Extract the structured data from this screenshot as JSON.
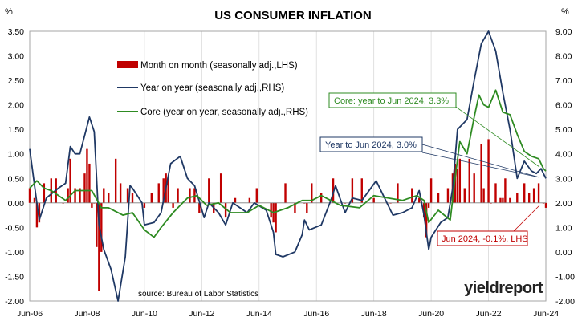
{
  "chart_data": {
    "type": "bar+line",
    "title": "US CONSUMER INFLATION",
    "left_axis": {
      "unit": "%",
      "ylim": [
        -2.0,
        3.5
      ],
      "ticks": [
        "3.50",
        "3.00",
        "2.50",
        "2.00",
        "1.50",
        "1.00",
        "0.50",
        "0.00",
        "-0.50",
        "-1.00",
        "-1.50",
        "-2.00"
      ]
    },
    "right_axis": {
      "unit": "%",
      "ylim": [
        -2.0,
        9.0
      ],
      "ticks": [
        "9.00",
        "8.00",
        "7.00",
        "6.00",
        "5.00",
        "4.00",
        "3.00",
        "2.00",
        "1.00",
        "0.00",
        "-1.00",
        "-2.00"
      ]
    },
    "x_axis": {
      "range": [
        "2006-06",
        "2024-06"
      ],
      "ticks": [
        "Jun-06",
        "Jun-08",
        "Jun-10",
        "Jun-12",
        "Jun-14",
        "Jun-16",
        "Jun-18",
        "Jun-20",
        "Jun-22",
        "Jun-24"
      ]
    },
    "grid": "vertical",
    "legend_position": "upper-left",
    "legend": [
      {
        "label": "Month on month (seasonally adj.,LHS)",
        "style": "bar",
        "color": "#c00000"
      },
      {
        "label": "Year on year (seasonally adj.,RHS)",
        "style": "line",
        "color": "#1f3864"
      },
      {
        "label": "Core (year on year, seasonally adj.,RHS)",
        "style": "line",
        "color": "#2e8b22"
      }
    ],
    "series": [
      {
        "name": "Month on month (seasonally adj.,LHS)",
        "type": "bar",
        "axis": "left",
        "color": "#c00000",
        "points": [
          [
            "2006-06",
            0.3
          ],
          [
            "2006-08",
            0.1
          ],
          [
            "2006-09",
            -0.5
          ],
          [
            "2006-10",
            -0.4
          ],
          [
            "2006-12",
            0.4
          ],
          [
            "2007-03",
            0.5
          ],
          [
            "2007-05",
            0.5
          ],
          [
            "2007-08",
            0.0
          ],
          [
            "2007-10",
            0.3
          ],
          [
            "2007-11",
            0.9
          ],
          [
            "2008-01",
            0.3
          ],
          [
            "2008-03",
            0.3
          ],
          [
            "2008-05",
            0.6
          ],
          [
            "2008-06",
            1.1
          ],
          [
            "2008-07",
            0.8
          ],
          [
            "2008-08",
            -0.1
          ],
          [
            "2008-09",
            0.0
          ],
          [
            "2008-10",
            -0.9
          ],
          [
            "2008-11",
            -1.8
          ],
          [
            "2008-12",
            -1.0
          ],
          [
            "2009-01",
            0.3
          ],
          [
            "2009-03",
            0.2
          ],
          [
            "2009-06",
            0.9
          ],
          [
            "2009-08",
            0.4
          ],
          [
            "2009-11",
            0.3
          ],
          [
            "2010-01",
            0.2
          ],
          [
            "2010-06",
            -0.1
          ],
          [
            "2010-09",
            0.2
          ],
          [
            "2010-12",
            0.4
          ],
          [
            "2011-02",
            0.5
          ],
          [
            "2011-03",
            0.6
          ],
          [
            "2011-04",
            0.5
          ],
          [
            "2011-06",
            -0.1
          ],
          [
            "2011-08",
            0.3
          ],
          [
            "2012-01",
            0.3
          ],
          [
            "2012-03",
            0.3
          ],
          [
            "2012-05",
            -0.2
          ],
          [
            "2012-09",
            0.5
          ],
          [
            "2012-11",
            -0.2
          ],
          [
            "2013-02",
            0.6
          ],
          [
            "2013-04",
            -0.3
          ],
          [
            "2013-08",
            0.1
          ],
          [
            "2014-02",
            0.1
          ],
          [
            "2014-05",
            0.3
          ],
          [
            "2014-11",
            -0.3
          ],
          [
            "2014-12",
            -0.4
          ],
          [
            "2015-01",
            -0.6
          ],
          [
            "2015-05",
            0.4
          ],
          [
            "2015-09",
            -0.2
          ],
          [
            "2016-01",
            0.0
          ],
          [
            "2016-02",
            -0.2
          ],
          [
            "2016-04",
            0.4
          ],
          [
            "2016-08",
            0.2
          ],
          [
            "2017-01",
            0.5
          ],
          [
            "2017-06",
            0.0
          ],
          [
            "2017-09",
            0.5
          ],
          [
            "2018-01",
            0.5
          ],
          [
            "2018-06",
            0.1
          ],
          [
            "2019-01",
            0.0
          ],
          [
            "2019-04",
            0.4
          ],
          [
            "2019-10",
            0.3
          ],
          [
            "2020-01",
            0.1
          ],
          [
            "2020-03",
            -0.3
          ],
          [
            "2020-04",
            -0.7
          ],
          [
            "2020-05",
            -0.1
          ],
          [
            "2020-06",
            0.5
          ],
          [
            "2020-09",
            0.2
          ],
          [
            "2021-01",
            0.3
          ],
          [
            "2021-03",
            0.6
          ],
          [
            "2021-04",
            0.8
          ],
          [
            "2021-05",
            0.7
          ],
          [
            "2021-06",
            0.9
          ],
          [
            "2021-08",
            0.3
          ],
          [
            "2021-10",
            0.9
          ],
          [
            "2021-12",
            0.6
          ],
          [
            "2022-03",
            1.2
          ],
          [
            "2022-04",
            0.3
          ],
          [
            "2022-06",
            1.3
          ],
          [
            "2022-07",
            0.0
          ],
          [
            "2022-09",
            0.4
          ],
          [
            "2022-11",
            0.1
          ],
          [
            "2022-12",
            0.1
          ],
          [
            "2023-01",
            0.5
          ],
          [
            "2023-03",
            0.1
          ],
          [
            "2023-06",
            0.2
          ],
          [
            "2023-09",
            0.4
          ],
          [
            "2023-11",
            0.2
          ],
          [
            "2024-01",
            0.3
          ],
          [
            "2024-03",
            0.4
          ],
          [
            "2024-05",
            0.0
          ],
          [
            "2024-06",
            -0.1
          ]
        ]
      },
      {
        "name": "Year on year (seasonally adj.,RHS)",
        "type": "line",
        "axis": "right",
        "color": "#1f3864",
        "points": [
          [
            "2006-06",
            4.2
          ],
          [
            "2006-09",
            2.0
          ],
          [
            "2006-10",
            1.3
          ],
          [
            "2007-01",
            2.2
          ],
          [
            "2007-06",
            2.6
          ],
          [
            "2007-09",
            2.8
          ],
          [
            "2007-11",
            4.3
          ],
          [
            "2008-01",
            4.0
          ],
          [
            "2008-03",
            4.0
          ],
          [
            "2008-07",
            5.5
          ],
          [
            "2008-09",
            4.9
          ],
          [
            "2008-11",
            1.1
          ],
          [
            "2009-01",
            0.1
          ],
          [
            "2009-04",
            -0.7
          ],
          [
            "2009-07",
            -2.0
          ],
          [
            "2009-10",
            -0.2
          ],
          [
            "2009-12",
            2.7
          ],
          [
            "2010-01",
            2.6
          ],
          [
            "2010-05",
            2.0
          ],
          [
            "2010-06",
            1.1
          ],
          [
            "2010-10",
            1.2
          ],
          [
            "2011-01",
            1.6
          ],
          [
            "2011-05",
            3.6
          ],
          [
            "2011-09",
            3.9
          ],
          [
            "2011-12",
            3.0
          ],
          [
            "2012-03",
            2.7
          ],
          [
            "2012-07",
            1.4
          ],
          [
            "2012-09",
            2.0
          ],
          [
            "2013-01",
            1.6
          ],
          [
            "2013-04",
            1.1
          ],
          [
            "2013-07",
            2.0
          ],
          [
            "2014-01",
            1.6
          ],
          [
            "2014-04",
            2.0
          ],
          [
            "2014-09",
            1.7
          ],
          [
            "2014-12",
            0.8
          ],
          [
            "2015-01",
            -0.1
          ],
          [
            "2015-04",
            -0.2
          ],
          [
            "2015-09",
            0.0
          ],
          [
            "2015-12",
            0.7
          ],
          [
            "2016-01",
            1.3
          ],
          [
            "2016-03",
            0.9
          ],
          [
            "2016-08",
            1.1
          ],
          [
            "2016-12",
            2.1
          ],
          [
            "2017-02",
            2.7
          ],
          [
            "2017-06",
            1.6
          ],
          [
            "2017-09",
            2.2
          ],
          [
            "2018-01",
            2.1
          ],
          [
            "2018-07",
            2.9
          ],
          [
            "2018-12",
            1.9
          ],
          [
            "2019-02",
            1.5
          ],
          [
            "2019-06",
            1.6
          ],
          [
            "2019-10",
            1.8
          ],
          [
            "2020-01",
            2.5
          ],
          [
            "2020-03",
            1.5
          ],
          [
            "2020-05",
            0.1
          ],
          [
            "2020-06",
            0.6
          ],
          [
            "2020-10",
            1.2
          ],
          [
            "2021-01",
            1.4
          ],
          [
            "2021-03",
            2.6
          ],
          [
            "2021-05",
            5.0
          ],
          [
            "2021-09",
            5.4
          ],
          [
            "2021-12",
            7.0
          ],
          [
            "2022-03",
            8.5
          ],
          [
            "2022-06",
            9.0
          ],
          [
            "2022-09",
            8.2
          ],
          [
            "2022-12",
            6.5
          ],
          [
            "2023-03",
            5.0
          ],
          [
            "2023-06",
            3.0
          ],
          [
            "2023-09",
            3.7
          ],
          [
            "2023-12",
            3.3
          ],
          [
            "2024-02",
            3.2
          ],
          [
            "2024-04",
            3.4
          ],
          [
            "2024-06",
            3.0
          ]
        ]
      },
      {
        "name": "Core (year on year, seasonally adj.,RHS)",
        "type": "line",
        "axis": "right",
        "color": "#2e8b22",
        "points": [
          [
            "2006-06",
            2.6
          ],
          [
            "2006-09",
            2.9
          ],
          [
            "2006-12",
            2.6
          ],
          [
            "2007-03",
            2.5
          ],
          [
            "2007-09",
            2.1
          ],
          [
            "2008-01",
            2.5
          ],
          [
            "2008-08",
            2.5
          ],
          [
            "2008-12",
            1.8
          ],
          [
            "2009-03",
            1.8
          ],
          [
            "2009-09",
            1.5
          ],
          [
            "2010-01",
            1.6
          ],
          [
            "2010-06",
            0.9
          ],
          [
            "2010-10",
            0.6
          ],
          [
            "2011-01",
            1.0
          ],
          [
            "2011-06",
            1.6
          ],
          [
            "2011-12",
            2.2
          ],
          [
            "2012-04",
            2.3
          ],
          [
            "2012-08",
            1.9
          ],
          [
            "2013-01",
            2.0
          ],
          [
            "2013-06",
            1.6
          ],
          [
            "2014-01",
            1.6
          ],
          [
            "2014-06",
            1.9
          ],
          [
            "2014-12",
            1.6
          ],
          [
            "2015-06",
            1.8
          ],
          [
            "2015-12",
            2.1
          ],
          [
            "2016-04",
            2.1
          ],
          [
            "2016-08",
            2.3
          ],
          [
            "2017-04",
            1.9
          ],
          [
            "2017-12",
            1.8
          ],
          [
            "2018-06",
            2.3
          ],
          [
            "2018-12",
            2.2
          ],
          [
            "2019-06",
            2.1
          ],
          [
            "2019-12",
            2.3
          ],
          [
            "2020-03",
            2.1
          ],
          [
            "2020-05",
            1.2
          ],
          [
            "2020-09",
            1.7
          ],
          [
            "2021-02",
            1.3
          ],
          [
            "2021-04",
            3.0
          ],
          [
            "2021-06",
            4.5
          ],
          [
            "2021-09",
            4.0
          ],
          [
            "2021-12",
            5.5
          ],
          [
            "2022-02",
            6.4
          ],
          [
            "2022-04",
            6.0
          ],
          [
            "2022-06",
            5.9
          ],
          [
            "2022-09",
            6.6
          ],
          [
            "2022-12",
            5.7
          ],
          [
            "2023-03",
            5.6
          ],
          [
            "2023-06",
            4.8
          ],
          [
            "2023-09",
            4.1
          ],
          [
            "2023-12",
            3.9
          ],
          [
            "2024-03",
            3.8
          ],
          [
            "2024-05",
            3.4
          ],
          [
            "2024-06",
            3.3
          ]
        ]
      }
    ],
    "annotations": [
      {
        "text": "Core: year to Jun 2024, 3.3%",
        "color": "#2e8b22"
      },
      {
        "text": "Year to Jun 2024, 3.0%",
        "color": "#1f3864"
      },
      {
        "text": "Jun 2024, -0.1%, LHS",
        "color": "#c00000"
      }
    ],
    "source": "source: Bureau of Labor Statistics",
    "logo": {
      "prefix": "yield",
      "suffix": "report"
    }
  }
}
